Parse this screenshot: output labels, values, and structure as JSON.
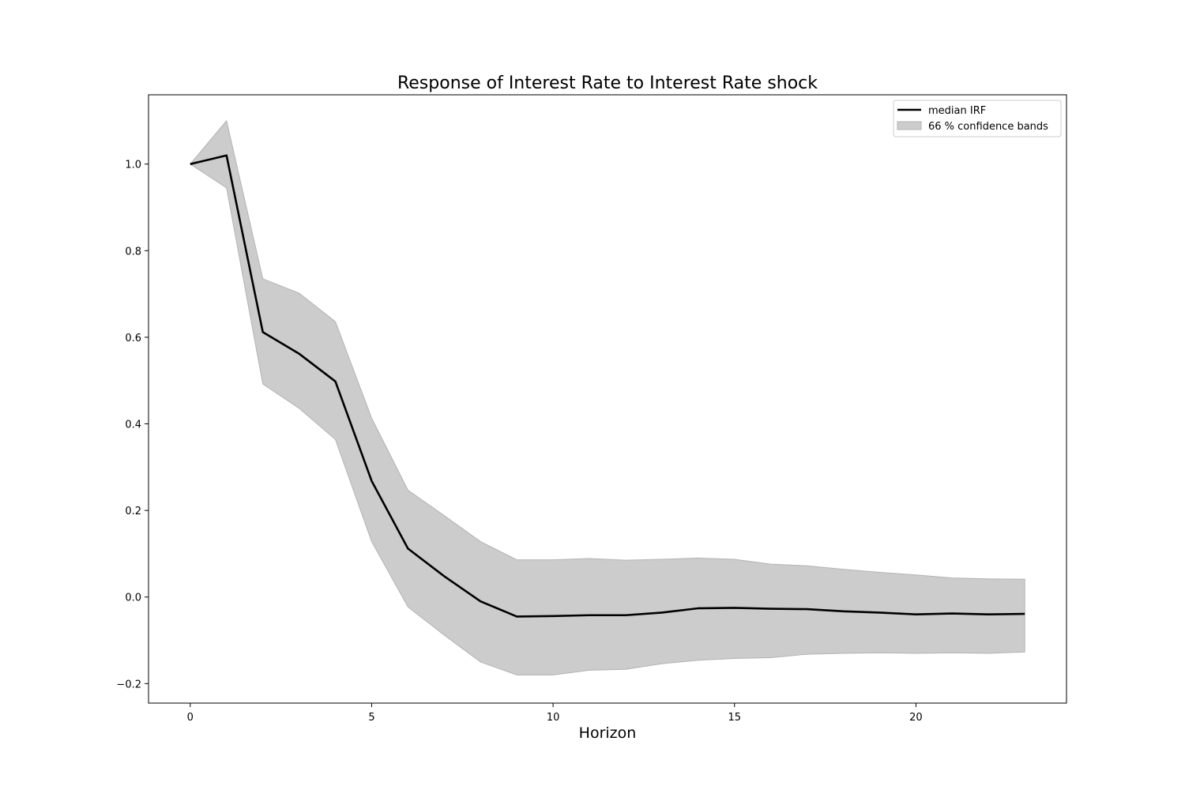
{
  "chart_data": {
    "type": "line",
    "title": "Response of Interest Rate to Interest Rate shock",
    "xlabel": "Horizon",
    "ylabel": "",
    "xlim": [
      -1.15,
      24.15
    ],
    "ylim": [
      -0.245,
      1.16
    ],
    "xticks": [
      0,
      5,
      10,
      15,
      20
    ],
    "xtick_labels": [
      "0",
      "5",
      "10",
      "15",
      "20"
    ],
    "yticks": [
      -0.2,
      0.0,
      0.2,
      0.4,
      0.6,
      0.8,
      1.0
    ],
    "ytick_labels": [
      "−0.2",
      "0.0",
      "0.2",
      "0.4",
      "0.6",
      "0.8",
      "1.0"
    ],
    "grid": false,
    "legend_position": "top-right",
    "x": [
      0,
      1,
      2,
      3,
      4,
      5,
      6,
      7,
      8,
      9,
      10,
      11,
      12,
      13,
      14,
      15,
      16,
      17,
      18,
      19,
      20,
      21,
      22,
      23
    ],
    "series": [
      {
        "name": "median IRF",
        "kind": "line",
        "color": "#000000",
        "values": [
          1.0,
          1.02,
          0.612,
          0.562,
          0.498,
          0.268,
          0.112,
          0.048,
          -0.01,
          -0.045,
          -0.044,
          -0.042,
          -0.042,
          -0.036,
          -0.026,
          -0.025,
          -0.027,
          -0.028,
          -0.033,
          -0.036,
          -0.04,
          -0.038,
          -0.04,
          -0.039
        ]
      },
      {
        "name": "66 % confidence bands",
        "kind": "band",
        "color": "#cccccc",
        "lower": [
          1.0,
          0.945,
          0.492,
          0.436,
          0.364,
          0.128,
          -0.023,
          -0.088,
          -0.15,
          -0.18,
          -0.18,
          -0.169,
          -0.167,
          -0.154,
          -0.146,
          -0.142,
          -0.14,
          -0.132,
          -0.13,
          -0.129,
          -0.13,
          -0.129,
          -0.13,
          -0.127
        ],
        "upper": [
          1.0,
          1.1,
          0.735,
          0.702,
          0.636,
          0.413,
          0.247,
          0.188,
          0.128,
          0.086,
          0.086,
          0.089,
          0.085,
          0.087,
          0.09,
          0.087,
          0.076,
          0.072,
          0.064,
          0.057,
          0.051,
          0.044,
          0.042,
          0.041
        ]
      }
    ]
  }
}
